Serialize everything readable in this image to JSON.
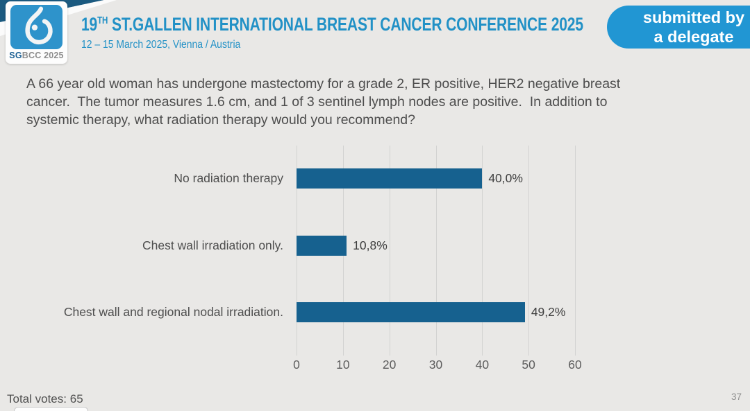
{
  "header": {
    "logo_sg": "SG",
    "logo_rest": "BCC 2025",
    "title_num": "19",
    "title_sup": "TH",
    "title_rest": " ST.GALLEN INTERNATIONAL BREAST CANCER CONFERENCE 2025",
    "subtitle": "12 – 15 March 2025, Vienna / Austria",
    "badge_line1": "submitted by",
    "badge_line2": "a delegate"
  },
  "question": "A 66 year old woman has undergone mastectomy for a grade 2, ER positive, HER2 negative breast cancer.  The tumor measures 1.6 cm, and 1 of 3 sentinel lymph nodes are positive.  In addition to systemic therapy, what radiation therapy would you recommend?",
  "chart_data": {
    "type": "bar",
    "orientation": "horizontal",
    "title": "",
    "categories": [
      "No radiation therapy",
      "Chest wall irradiation only.",
      "Chest wall and regional nodal irradiation."
    ],
    "values": [
      40.0,
      10.8,
      49.2
    ],
    "value_labels": [
      "40,0%",
      "10,8%",
      "49,2%"
    ],
    "xlim": [
      0,
      60
    ],
    "x_ticks": [
      0,
      10,
      20,
      30,
      40,
      50,
      60
    ],
    "grid": true,
    "legend": false,
    "bar_color": "#16618f"
  },
  "footer": {
    "total_votes_label": "Total votes:",
    "total_votes_value": "65",
    "page_number": "37"
  },
  "colors": {
    "accent_blue": "#2291c6",
    "badge_blue": "#2196d3",
    "logo_blue": "#2e93cb",
    "corner_navy": "#1b5a80",
    "bar_blue": "#16618f",
    "background": "#e9e8e6"
  }
}
